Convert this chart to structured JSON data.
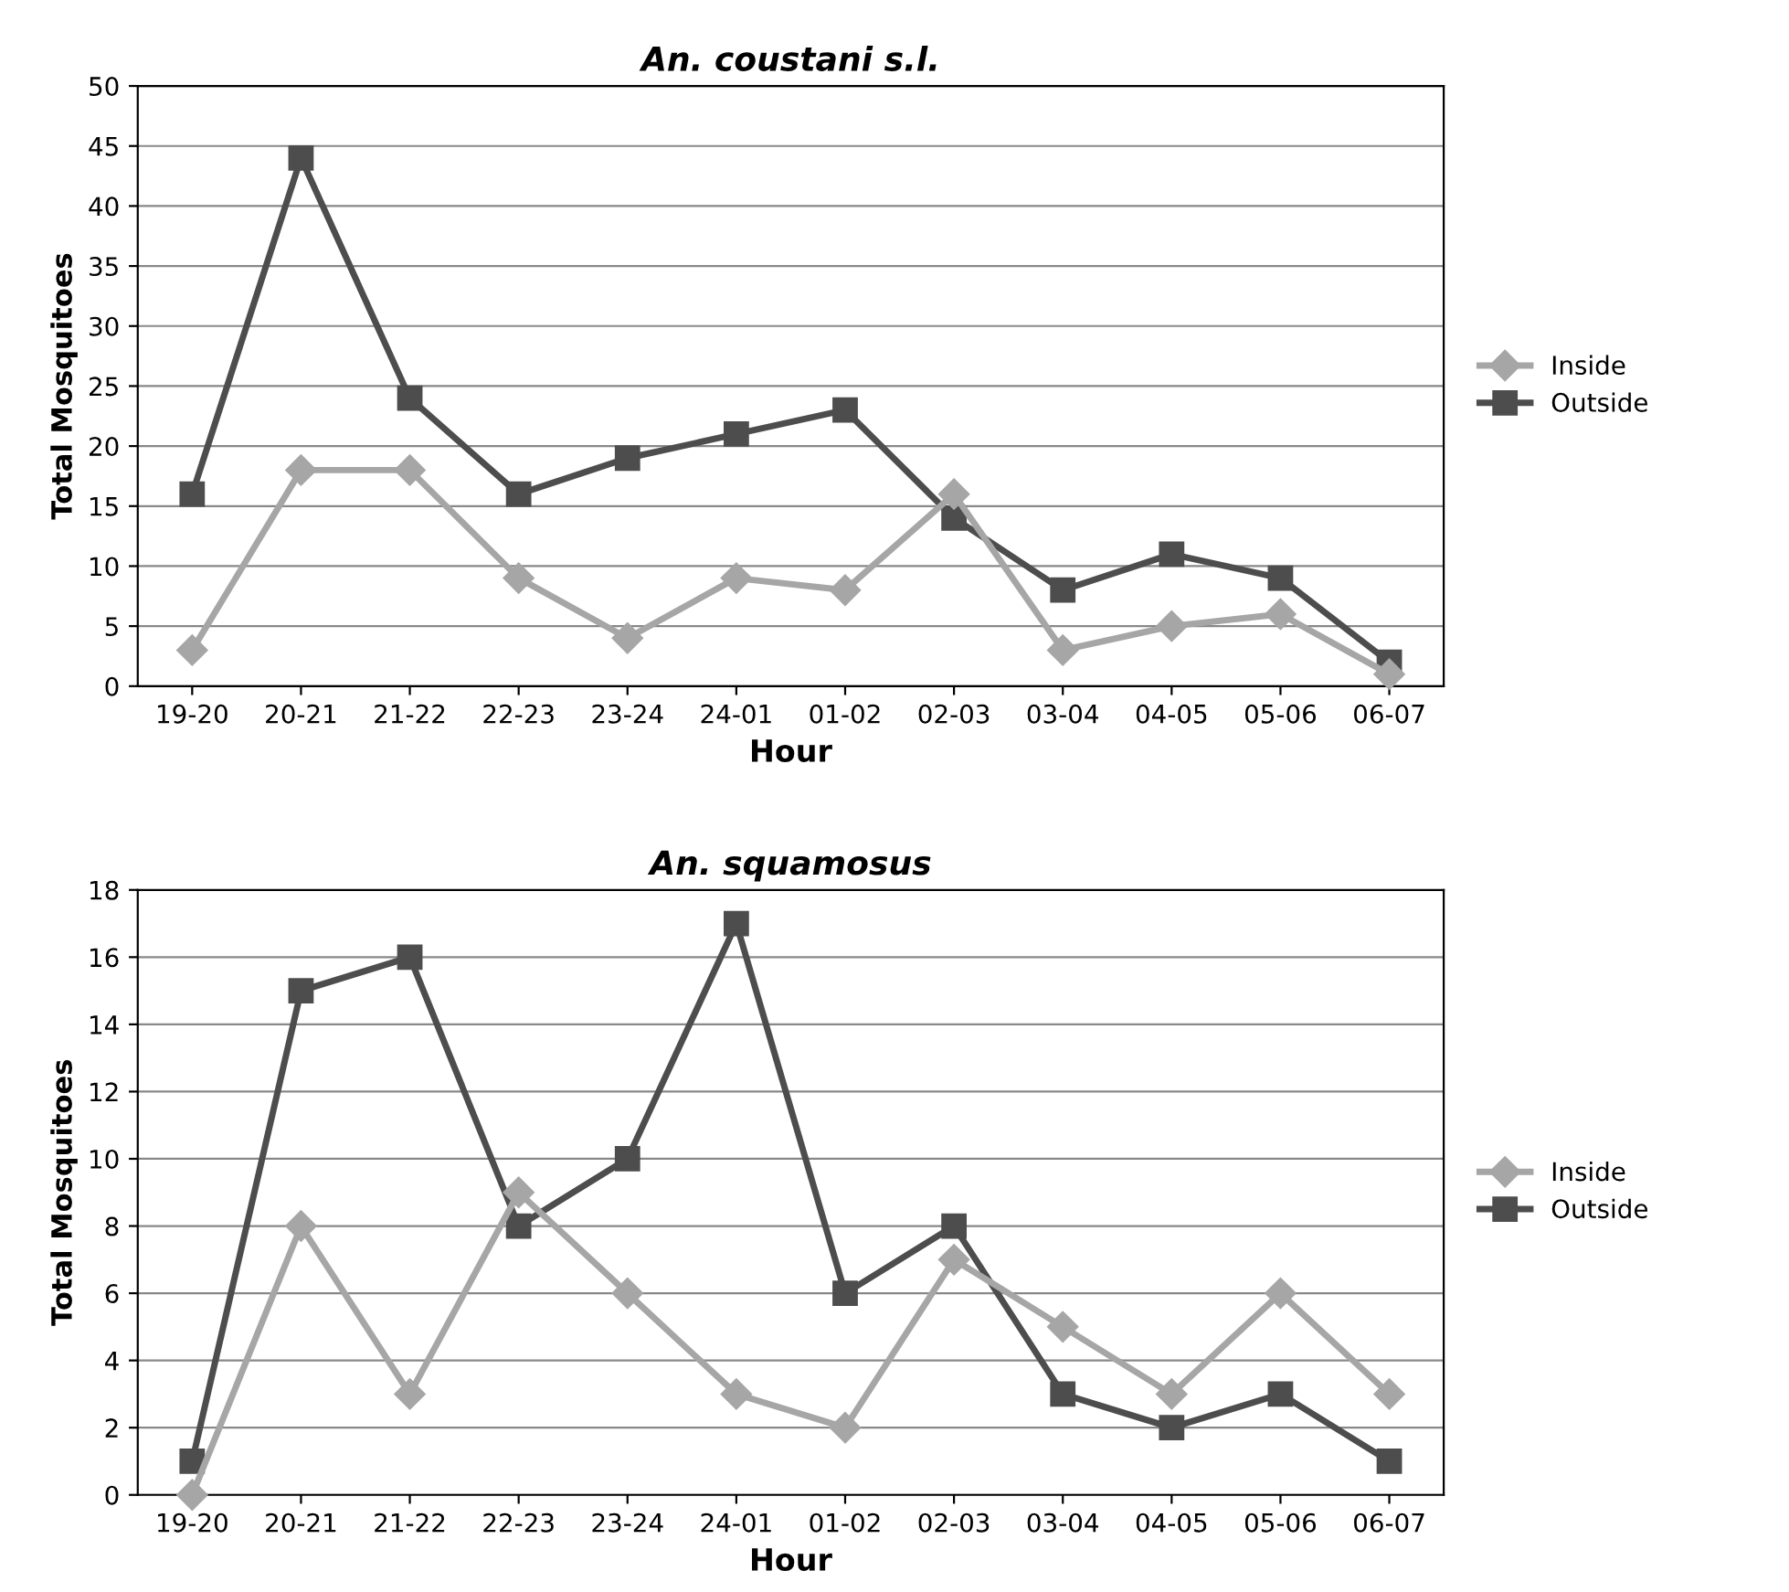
{
  "chart_data": [
    {
      "type": "line",
      "title": "An. coustani s.l.",
      "xlabel": "Hour",
      "ylabel": "Total Mosquitoes",
      "categories": [
        "19-20",
        "20-21",
        "21-22",
        "22-23",
        "23-24",
        "24-01",
        "01-02",
        "02-03",
        "03-04",
        "04-05",
        "05-06",
        "06-07"
      ],
      "series": [
        {
          "name": "Inside",
          "color": "#a6a6a6",
          "marker": "diamond",
          "values": [
            3,
            18,
            18,
            9,
            4,
            9,
            8,
            16,
            3,
            5,
            6,
            1
          ]
        },
        {
          "name": "Outside",
          "color": "#4d4d4d",
          "marker": "square",
          "values": [
            16,
            44,
            24,
            16,
            19,
            21,
            23,
            14,
            8,
            11,
            9,
            2
          ]
        }
      ],
      "ylim": [
        0,
        50
      ],
      "yticks": [
        0,
        5,
        10,
        15,
        20,
        25,
        30,
        35,
        40,
        45,
        50
      ],
      "grid": "y",
      "legend": "right",
      "line_style": "solid"
    },
    {
      "type": "line",
      "title": "An. squamosus",
      "xlabel": "Hour",
      "ylabel": "Total Mosquitoes",
      "categories": [
        "19-20",
        "20-21",
        "21-22",
        "22-23",
        "23-24",
        "24-01",
        "01-02",
        "02-03",
        "03-04",
        "04-05",
        "05-06",
        "06-07"
      ],
      "series": [
        {
          "name": "Inside",
          "color": "#a6a6a6",
          "marker": "diamond",
          "values": [
            0,
            8,
            3,
            9,
            6,
            3,
            2,
            7,
            5,
            3,
            6,
            3
          ]
        },
        {
          "name": "Outside",
          "color": "#4d4d4d",
          "marker": "square",
          "values": [
            1,
            15,
            16,
            8,
            10,
            17,
            6,
            8,
            3,
            2,
            3,
            1
          ]
        }
      ],
      "ylim": [
        0,
        18
      ],
      "yticks": [
        0,
        2,
        4,
        6,
        8,
        10,
        12,
        14,
        16,
        18
      ],
      "grid": "y",
      "legend": "right",
      "line_style": "solid"
    }
  ]
}
